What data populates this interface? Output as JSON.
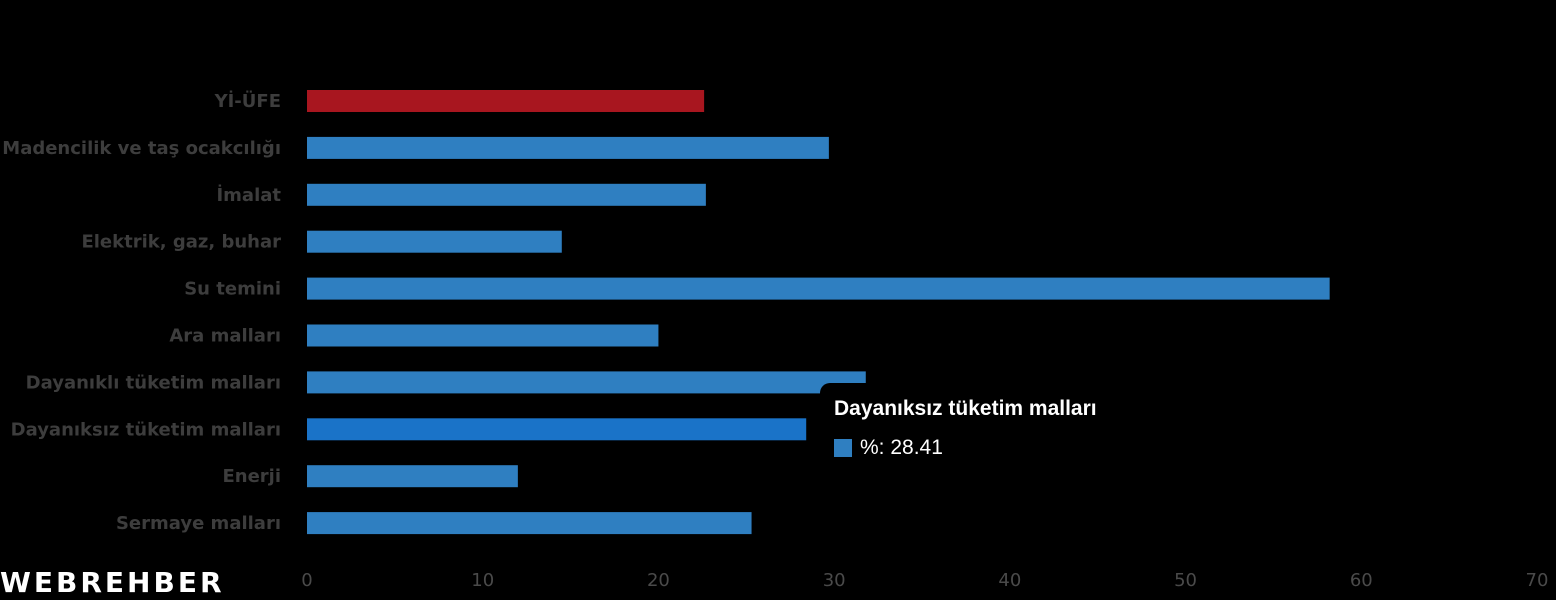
{
  "chart_data": {
    "type": "bar",
    "orientation": "horizontal",
    "categories": [
      "Yİ-ÜFE",
      "Madencilik ve taş ocakcılığı",
      "İmalat",
      "Elektrik, gaz, buhar",
      "Su temini",
      "Ara malları",
      "Dayanıklı tüketim malları",
      "Dayanıksız tüketim malları",
      "Enerji",
      "Sermaye malları"
    ],
    "series": [
      {
        "name": "%",
        "values": [
          22.6,
          29.7,
          22.7,
          14.5,
          58.2,
          20.0,
          31.8,
          28.41,
          12.0,
          25.3
        ]
      }
    ],
    "highlight_index": 0,
    "hover_index": 7,
    "xlim": [
      0,
      70
    ],
    "xticks": [
      0,
      10,
      20,
      30,
      40,
      50,
      60,
      70
    ],
    "grid": false,
    "legend": "none",
    "colors": {
      "bar": "#2f7fc1",
      "highlight_bar": "#a8161f",
      "hover_bar": "#1a73c8",
      "background": "#000000"
    }
  },
  "tooltip": {
    "title": "Dayanıksız tüketim malları",
    "value_text": "%: 28.41"
  },
  "brand": "WEBREHBER"
}
